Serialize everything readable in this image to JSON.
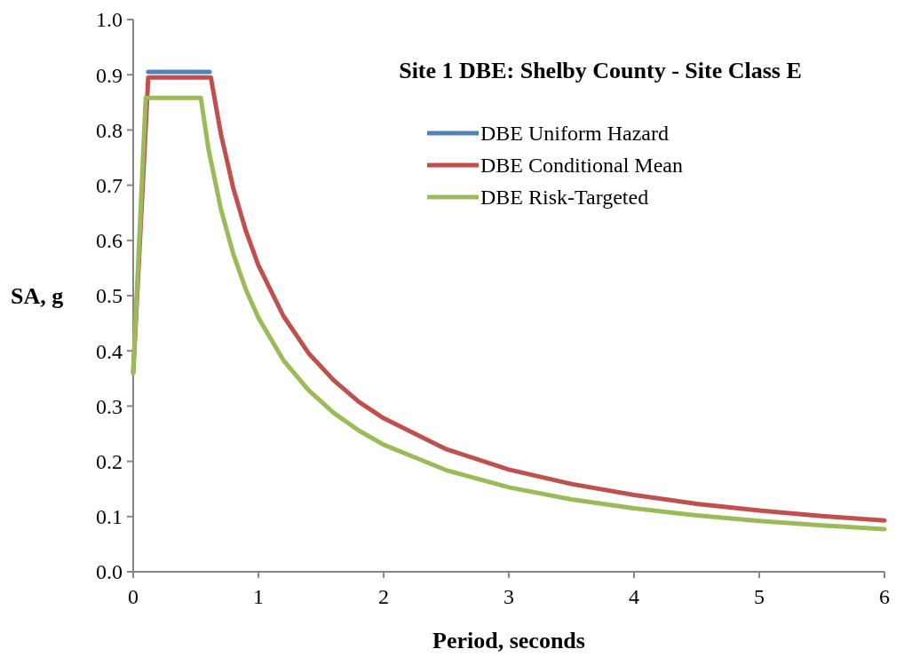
{
  "chart_data": {
    "type": "line",
    "title": "Site 1 DBE: Shelby County - Site Class E",
    "xlabel": "Period, seconds",
    "ylabel": "SA, g",
    "xlim": [
      0,
      6
    ],
    "ylim": [
      0,
      1
    ],
    "xticks": [
      0,
      1,
      2,
      3,
      4,
      5,
      6
    ],
    "yticks": [
      {
        "value": 0,
        "label": "0.0"
      },
      0.1,
      0.2,
      0.3,
      0.4,
      0.5,
      0.6,
      0.7,
      0.8,
      0.9,
      {
        "value": 1,
        "label": "1.0"
      }
    ],
    "grid": false,
    "legend": "top right",
    "marker": "none",
    "line_style": "solid",
    "series": [
      {
        "name": "DBE Uniform Hazard",
        "color": "#4f81bd",
        "x": [
          0.12,
          0.61
        ],
        "values": [
          0.905,
          0.905
        ]
      },
      {
        "name": "DBE Conditional Mean",
        "color": "#c0504d",
        "x": [
          0,
          0.12,
          0.62,
          0.7,
          0.8,
          0.9,
          1,
          1.2,
          1.4,
          1.6,
          1.8,
          2,
          2.5,
          3,
          3.5,
          4,
          4.5,
          5,
          5.5,
          6
        ],
        "values": [
          0.36,
          0.895,
          0.895,
          0.793,
          0.694,
          0.617,
          0.555,
          0.463,
          0.396,
          0.347,
          0.308,
          0.278,
          0.222,
          0.185,
          0.159,
          0.139,
          0.123,
          0.111,
          0.101,
          0.093
        ]
      },
      {
        "name": "DBE Risk-Targeted",
        "color": "#9bbb59",
        "x": [
          0,
          0.1,
          0.54,
          0.6,
          0.7,
          0.8,
          0.9,
          1,
          1.2,
          1.4,
          1.6,
          1.8,
          2,
          2.5,
          3,
          3.5,
          4,
          4.5,
          5,
          5.5,
          6
        ],
        "values": [
          0.36,
          0.858,
          0.858,
          0.767,
          0.657,
          0.575,
          0.511,
          0.46,
          0.383,
          0.329,
          0.288,
          0.256,
          0.23,
          0.184,
          0.153,
          0.131,
          0.115,
          0.102,
          0.092,
          0.084,
          0.077
        ]
      }
    ]
  }
}
